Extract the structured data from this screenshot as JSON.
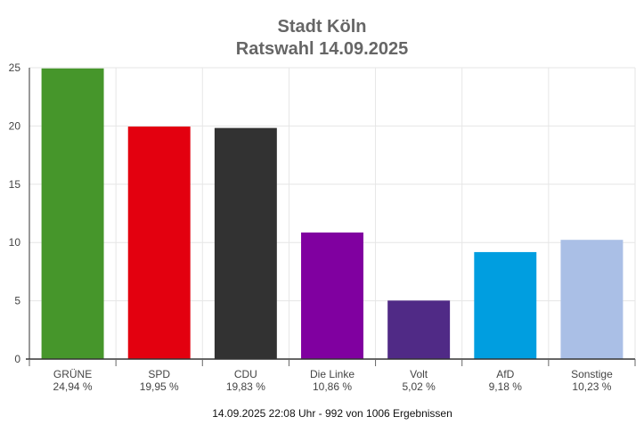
{
  "chart_data": {
    "type": "bar",
    "title": "Stadt Köln",
    "subtitle": "Ratswahl 14.09.2025",
    "categories": [
      "GRÜNE",
      "SPD",
      "CDU",
      "Die Linke",
      "Volt",
      "AfD",
      "Sonstige"
    ],
    "value_labels": [
      "24,94 %",
      "19,95 %",
      "19,83 %",
      "10,86 %",
      "5,02 %",
      "9,18 %",
      "10,23 %"
    ],
    "values": [
      24.94,
      19.95,
      19.83,
      10.86,
      5.02,
      9.18,
      10.23
    ],
    "colors": [
      "#46962b",
      "#e3000f",
      "#323232",
      "#8000a0",
      "#502a86",
      "#009ee0",
      "#aabfe6"
    ],
    "ylim": [
      0,
      25
    ],
    "yticks": [
      "0",
      "5",
      "10",
      "15",
      "20",
      "25"
    ],
    "grid": true,
    "footer": "14.09.2025 22:08 Uhr - 992 von 1006 Ergebnissen"
  }
}
